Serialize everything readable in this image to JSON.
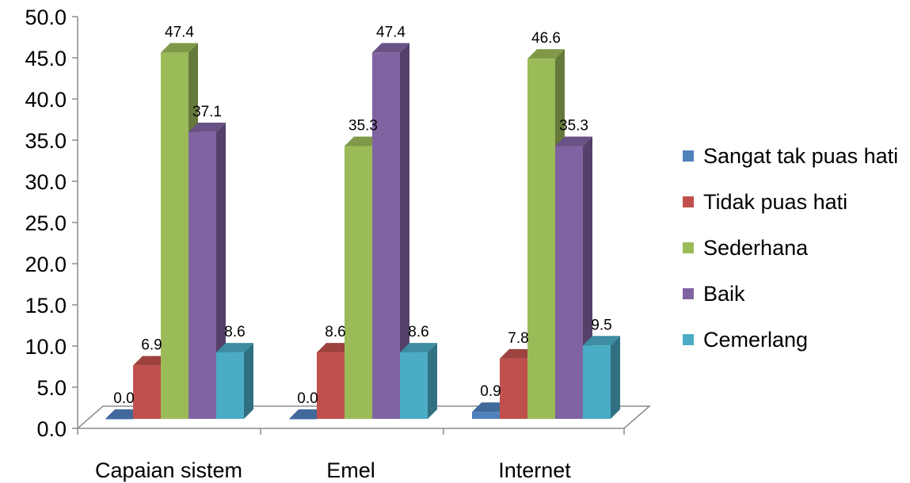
{
  "chart_data": {
    "type": "bar",
    "title": "",
    "xlabel": "",
    "ylabel": "",
    "ylim": [
      0,
      50
    ],
    "yticks": [
      "0.0",
      "5.0",
      "10.0",
      "15.0",
      "20.0",
      "25.0",
      "30.0",
      "35.0",
      "40.0",
      "45.0",
      "50.0"
    ],
    "grid": false,
    "legend_position": "right",
    "style": "3d-clustered-column",
    "categories": [
      "Capaian sistem",
      "Emel",
      "Internet"
    ],
    "series": [
      {
        "name": "Sangat tak puas hati",
        "color": "#4f81bd",
        "values": [
          0.0,
          0.0,
          0.9
        ],
        "labels": [
          "0.0",
          "0.0",
          "0.9"
        ]
      },
      {
        "name": "Tidak puas hati",
        "color": "#c0504d",
        "values": [
          6.9,
          8.6,
          7.8
        ],
        "labels": [
          "6.9",
          "8.6",
          "7.8"
        ]
      },
      {
        "name": "Sederhana",
        "color": "#9bbb59",
        "values": [
          47.4,
          35.3,
          46.6
        ],
        "labels": [
          "47.4",
          "35.3",
          "46.6"
        ]
      },
      {
        "name": "Baik",
        "color": "#8064a2",
        "values": [
          37.1,
          47.4,
          35.3
        ],
        "labels": [
          "37.1",
          "47.4",
          "35.3"
        ]
      },
      {
        "name": "Cemerlang",
        "color": "#4bacc6",
        "values": [
          8.6,
          8.6,
          9.5
        ],
        "labels": [
          "8.6",
          "8.6",
          "9.5"
        ]
      }
    ]
  }
}
